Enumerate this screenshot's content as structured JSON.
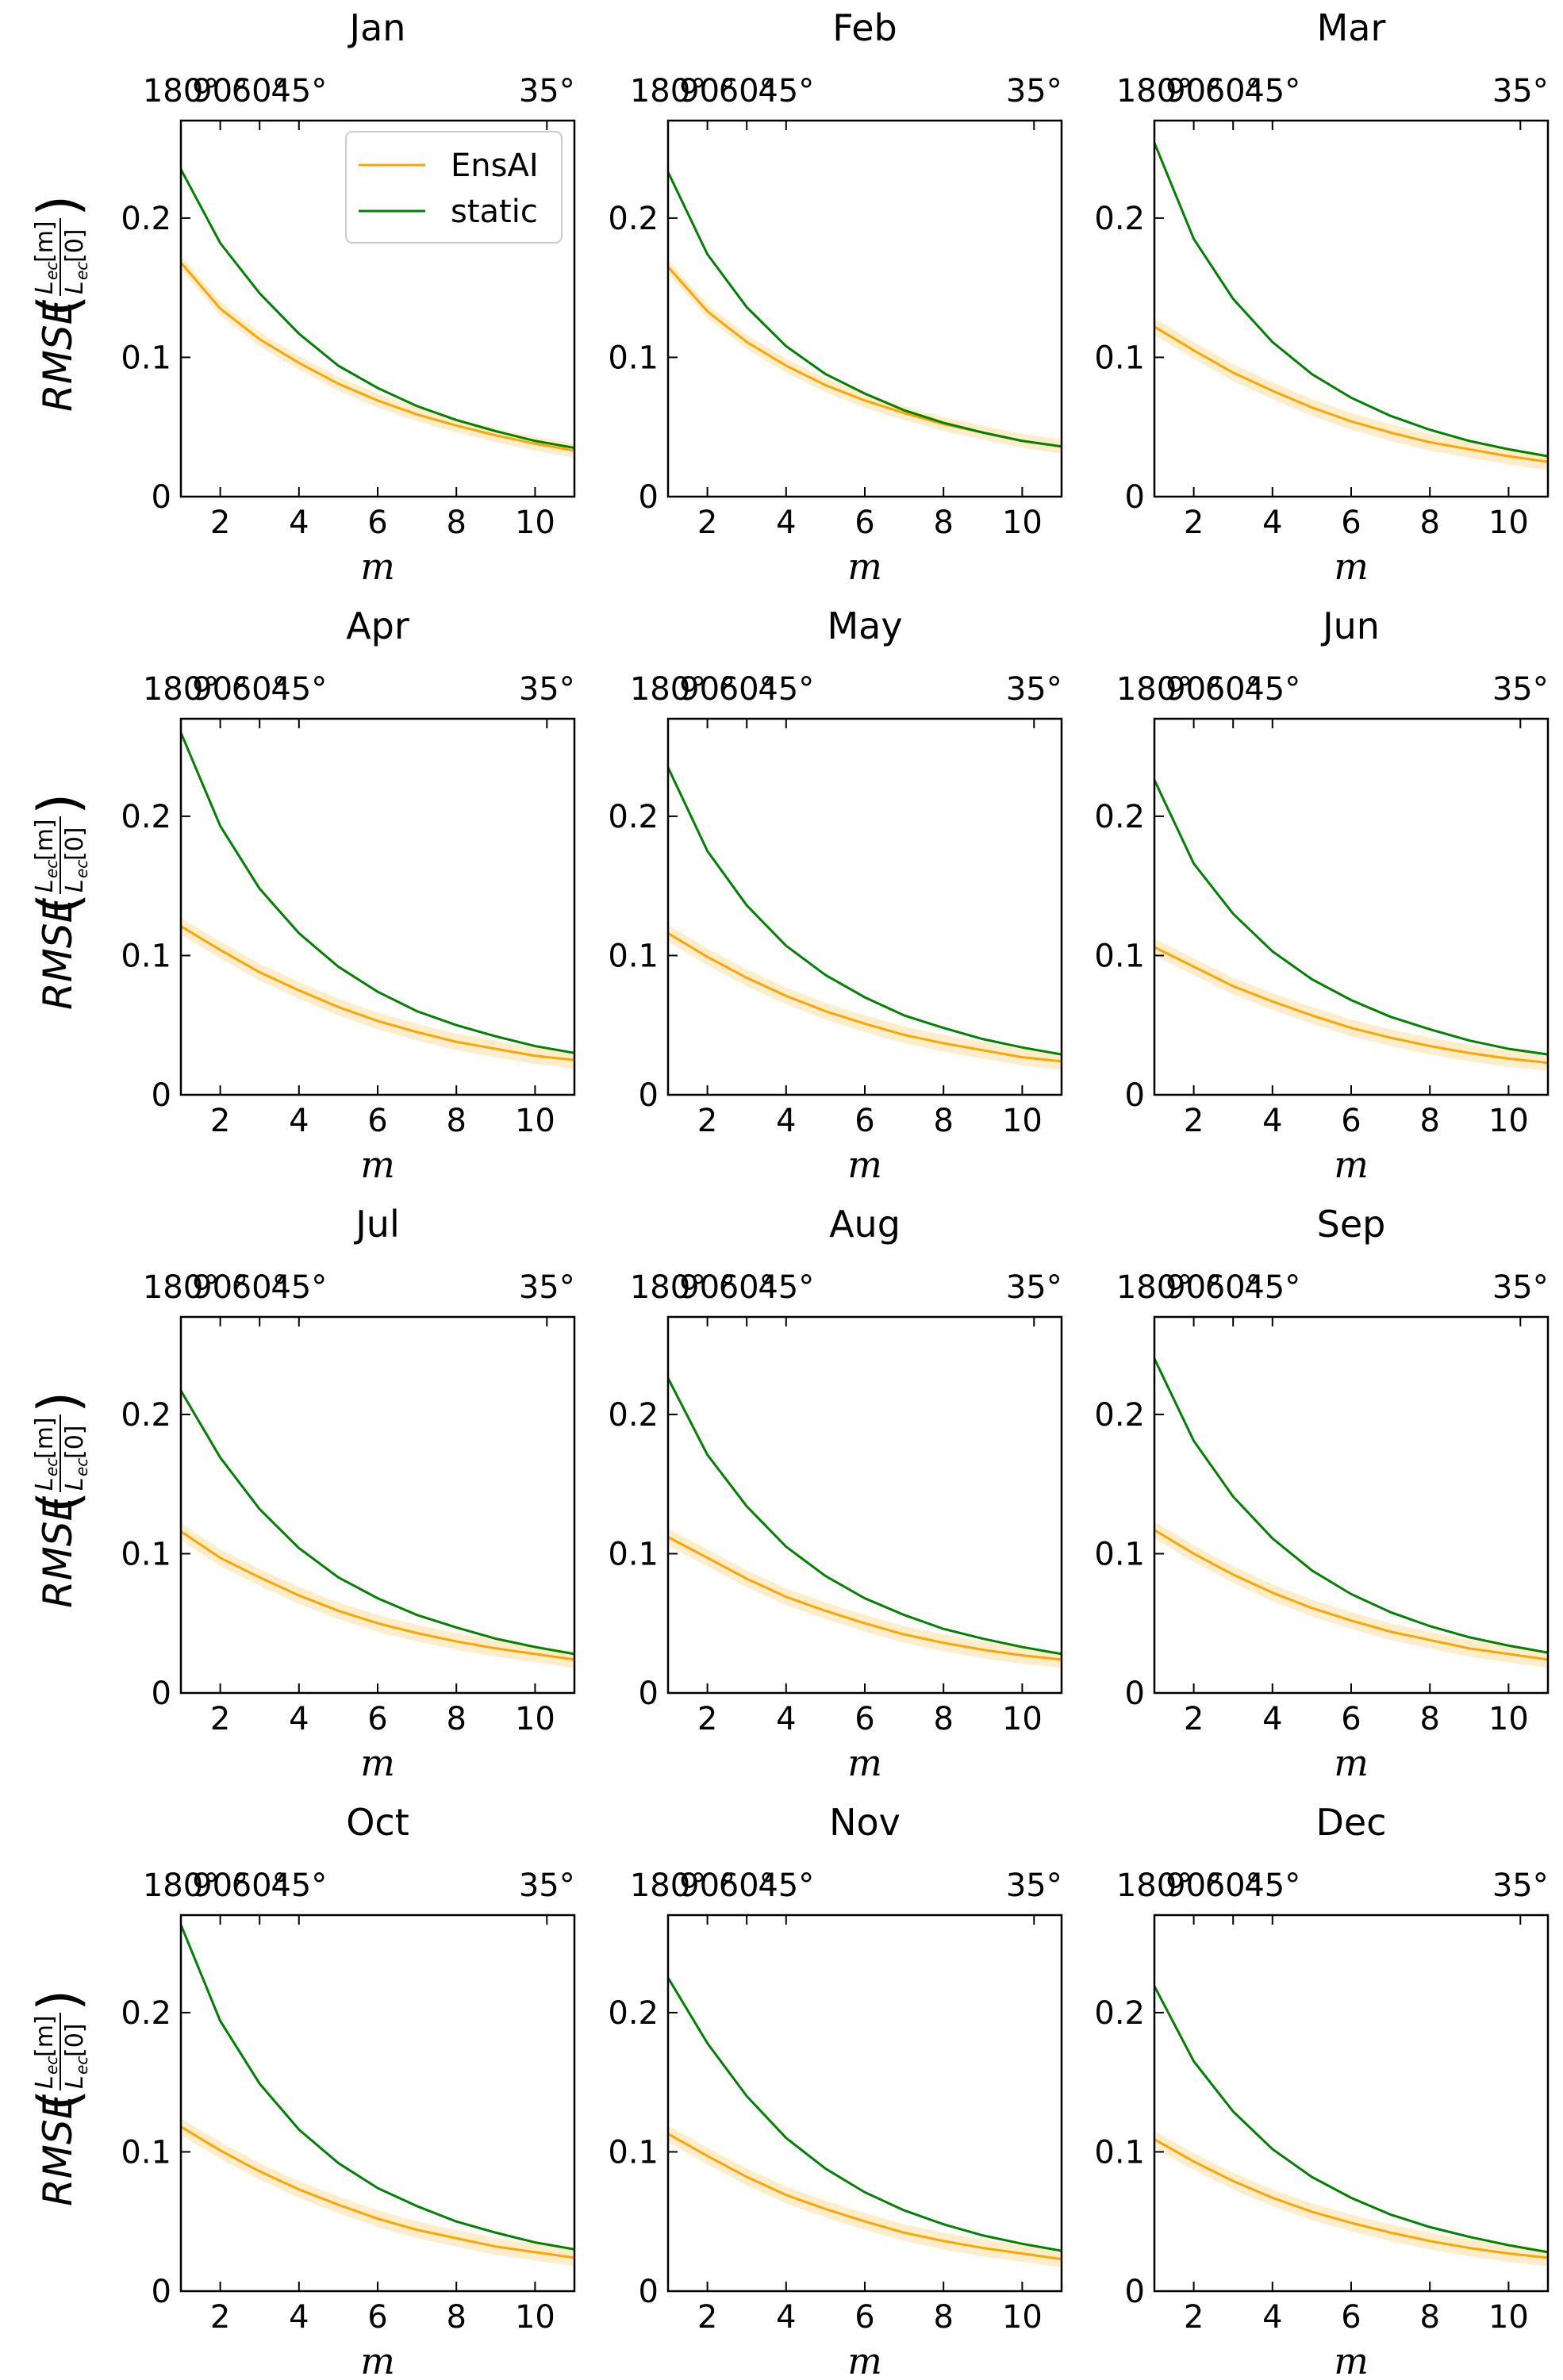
{
  "chart_data": {
    "type": "line",
    "layout": "3 columns x 4 rows of small multiples",
    "shared": {
      "xlabel": "m",
      "ylabel": "RMSE",
      "ylabel_num": "L",
      "ylabel_num_sub": "ec",
      "ylabel_num_arg": "[m]",
      "ylabel_den": "L",
      "ylabel_den_sub": "ec",
      "ylabel_den_arg": "[0]",
      "xlim": [
        1,
        11
      ],
      "ylim": [
        0,
        0.27
      ],
      "x_ticks": [
        2,
        4,
        6,
        8,
        10
      ],
      "x_tick_labels": [
        "2",
        "4",
        "6",
        "8",
        "10"
      ],
      "y_ticks": [
        0,
        0.1,
        0.2
      ],
      "y_tick_labels": [
        "0",
        "0.1",
        "0.2"
      ],
      "top_axis_ticks_m": [
        1,
        2,
        3,
        4,
        5.1
      ],
      "top_axis_ticks_m_last": 10.3,
      "top_axis_labels": [
        "180°",
        "90°",
        "60°",
        "45°",
        "35°"
      ],
      "legend": {
        "placement": "upper-right of first panel",
        "entries": [
          "EnsAI",
          "static"
        ]
      },
      "colors": {
        "EnsAI": "#ffa500",
        "EnsAI_band": "#ffa500",
        "static": "#008000"
      },
      "x": [
        1,
        2,
        3,
        4,
        5,
        6,
        7,
        8,
        9,
        10,
        11
      ]
    },
    "panels": [
      {
        "title": "Jan",
        "series": [
          {
            "name": "EnsAI",
            "values": [
              0.168,
              0.135,
              0.113,
              0.096,
              0.081,
              0.069,
              0.059,
              0.051,
              0.044,
              0.038,
              0.033
            ],
            "band": 0.005
          },
          {
            "name": "static",
            "values": [
              0.235,
              0.182,
              0.146,
              0.117,
              0.094,
              0.078,
              0.065,
              0.055,
              0.047,
              0.04,
              0.035
            ]
          }
        ]
      },
      {
        "title": "Feb",
        "series": [
          {
            "name": "EnsAI",
            "values": [
              0.165,
              0.133,
              0.111,
              0.094,
              0.08,
              0.069,
              0.06,
              0.052,
              0.046,
              0.04,
              0.036
            ],
            "band": 0.005
          },
          {
            "name": "static",
            "values": [
              0.233,
              0.174,
              0.136,
              0.108,
              0.088,
              0.074,
              0.062,
              0.053,
              0.046,
              0.04,
              0.036
            ]
          }
        ]
      },
      {
        "title": "Mar",
        "series": [
          {
            "name": "EnsAI",
            "values": [
              0.122,
              0.105,
              0.089,
              0.076,
              0.064,
              0.054,
              0.046,
              0.039,
              0.034,
              0.029,
              0.025
            ],
            "band": 0.006
          },
          {
            "name": "static",
            "values": [
              0.254,
              0.185,
              0.142,
              0.111,
              0.088,
              0.071,
              0.058,
              0.048,
              0.04,
              0.034,
              0.029
            ]
          }
        ]
      },
      {
        "title": "Apr",
        "series": [
          {
            "name": "EnsAI",
            "values": [
              0.121,
              0.104,
              0.088,
              0.075,
              0.063,
              0.053,
              0.045,
              0.038,
              0.033,
              0.028,
              0.025
            ],
            "band": 0.006
          },
          {
            "name": "static",
            "values": [
              0.26,
              0.193,
              0.148,
              0.116,
              0.092,
              0.074,
              0.06,
              0.05,
              0.042,
              0.035,
              0.03
            ]
          }
        ]
      },
      {
        "title": "May",
        "series": [
          {
            "name": "EnsAI",
            "values": [
              0.116,
              0.099,
              0.084,
              0.071,
              0.06,
              0.051,
              0.043,
              0.037,
              0.032,
              0.027,
              0.024
            ],
            "band": 0.006
          },
          {
            "name": "static",
            "values": [
              0.235,
              0.175,
              0.136,
              0.107,
              0.086,
              0.07,
              0.057,
              0.048,
              0.04,
              0.034,
              0.029
            ]
          }
        ]
      },
      {
        "title": "Jun",
        "series": [
          {
            "name": "EnsAI",
            "values": [
              0.106,
              0.092,
              0.078,
              0.067,
              0.057,
              0.048,
              0.041,
              0.035,
              0.03,
              0.026,
              0.023
            ],
            "band": 0.006
          },
          {
            "name": "static",
            "values": [
              0.226,
              0.166,
              0.13,
              0.103,
              0.083,
              0.068,
              0.056,
              0.047,
              0.039,
              0.033,
              0.029
            ]
          }
        ]
      },
      {
        "title": "Jul",
        "series": [
          {
            "name": "EnsAI",
            "values": [
              0.116,
              0.097,
              0.083,
              0.07,
              0.059,
              0.05,
              0.043,
              0.037,
              0.032,
              0.028,
              0.024
            ],
            "band": 0.006
          },
          {
            "name": "static",
            "values": [
              0.217,
              0.169,
              0.132,
              0.104,
              0.083,
              0.068,
              0.056,
              0.047,
              0.039,
              0.033,
              0.028
            ]
          }
        ]
      },
      {
        "title": "Aug",
        "series": [
          {
            "name": "EnsAI",
            "values": [
              0.112,
              0.097,
              0.082,
              0.069,
              0.059,
              0.05,
              0.042,
              0.036,
              0.031,
              0.027,
              0.024
            ],
            "band": 0.006
          },
          {
            "name": "static",
            "values": [
              0.226,
              0.171,
              0.134,
              0.105,
              0.084,
              0.068,
              0.056,
              0.046,
              0.039,
              0.033,
              0.028
            ]
          }
        ]
      },
      {
        "title": "Sep",
        "series": [
          {
            "name": "EnsAI",
            "values": [
              0.117,
              0.1,
              0.085,
              0.072,
              0.061,
              0.052,
              0.044,
              0.038,
              0.032,
              0.028,
              0.024
            ],
            "band": 0.006
          },
          {
            "name": "static",
            "values": [
              0.24,
              0.181,
              0.141,
              0.111,
              0.088,
              0.071,
              0.058,
              0.048,
              0.04,
              0.034,
              0.029
            ]
          }
        ]
      },
      {
        "title": "Oct",
        "series": [
          {
            "name": "EnsAI",
            "values": [
              0.118,
              0.101,
              0.086,
              0.073,
              0.062,
              0.052,
              0.044,
              0.038,
              0.032,
              0.028,
              0.024
            ],
            "band": 0.006
          },
          {
            "name": "static",
            "values": [
              0.263,
              0.194,
              0.149,
              0.116,
              0.092,
              0.074,
              0.061,
              0.05,
              0.042,
              0.035,
              0.03
            ]
          }
        ]
      },
      {
        "title": "Nov",
        "series": [
          {
            "name": "EnsAI",
            "values": [
              0.113,
              0.097,
              0.082,
              0.069,
              0.059,
              0.05,
              0.042,
              0.036,
              0.031,
              0.027,
              0.023
            ],
            "band": 0.006
          },
          {
            "name": "static",
            "values": [
              0.225,
              0.178,
              0.14,
              0.11,
              0.088,
              0.071,
              0.058,
              0.048,
              0.04,
              0.034,
              0.029
            ]
          }
        ]
      },
      {
        "title": "Dec",
        "series": [
          {
            "name": "EnsAI",
            "values": [
              0.109,
              0.093,
              0.079,
              0.067,
              0.057,
              0.049,
              0.042,
              0.036,
              0.031,
              0.027,
              0.024
            ],
            "band": 0.006
          },
          {
            "name": "static",
            "values": [
              0.219,
              0.165,
              0.129,
              0.102,
              0.082,
              0.067,
              0.055,
              0.046,
              0.039,
              0.033,
              0.028
            ]
          }
        ]
      }
    ]
  }
}
